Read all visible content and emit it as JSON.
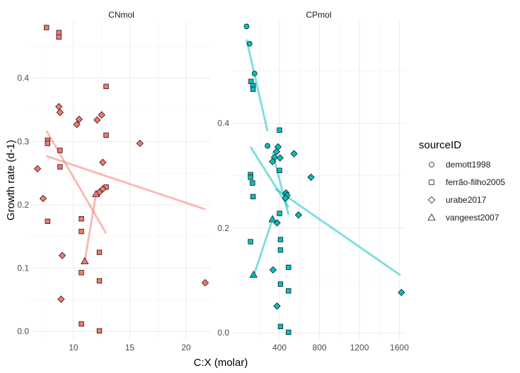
{
  "chart_data": {
    "type": "scatter",
    "xlabel": "C:X (molar)",
    "ylabel": "Growth rate (d-1)",
    "colors": {
      "CNmol": "#f8766d",
      "CPmol": "#00bfc4"
    },
    "legend": {
      "title": "sourceID",
      "position": "right",
      "entries": [
        {
          "name": "demott1998",
          "shape": "circle"
        },
        {
          "name": "ferrão-filho2005",
          "shape": "square"
        },
        {
          "name": "urabe2017",
          "shape": "diamond"
        },
        {
          "name": "vangeest2007",
          "shape": "triangle"
        }
      ]
    },
    "panels": [
      {
        "name": "CNmol",
        "xlim": [
          6.3,
          22.2
        ],
        "ylim": [
          -0.012,
          0.49
        ],
        "xticks": [
          10,
          15,
          20
        ],
        "yticks": [
          0.0,
          0.1,
          0.2,
          0.3,
          0.4
        ],
        "ytick_labels": [
          "0.0",
          "0.1",
          "0.2",
          "0.3",
          "0.4"
        ],
        "points": [
          {
            "x": 7.6,
            "y": 0.48,
            "source": "ferrão-filho2005"
          },
          {
            "x": 8.7,
            "y": 0.472,
            "source": "ferrão-filho2005"
          },
          {
            "x": 8.7,
            "y": 0.465,
            "source": "ferrão-filho2005"
          },
          {
            "x": 12.9,
            "y": 0.387,
            "source": "ferrão-filho2005"
          },
          {
            "x": 12.9,
            "y": 0.31,
            "source": "ferrão-filho2005"
          },
          {
            "x": 7.7,
            "y": 0.302,
            "source": "ferrão-filho2005"
          },
          {
            "x": 7.7,
            "y": 0.297,
            "source": "ferrão-filho2005"
          },
          {
            "x": 8.8,
            "y": 0.286,
            "source": "ferrão-filho2005"
          },
          {
            "x": 8.8,
            "y": 0.26,
            "source": "ferrão-filho2005"
          },
          {
            "x": 12.9,
            "y": 0.228,
            "source": "ferrão-filho2005"
          },
          {
            "x": 10.7,
            "y": 0.178,
            "source": "ferrão-filho2005"
          },
          {
            "x": 7.7,
            "y": 0.174,
            "source": "ferrão-filho2005"
          },
          {
            "x": 10.7,
            "y": 0.158,
            "source": "ferrão-filho2005"
          },
          {
            "x": 12.3,
            "y": 0.125,
            "source": "ferrão-filho2005"
          },
          {
            "x": 10.7,
            "y": 0.093,
            "source": "ferrão-filho2005"
          },
          {
            "x": 12.3,
            "y": 0.08,
            "source": "ferrão-filho2005"
          },
          {
            "x": 10.7,
            "y": 0.012,
            "source": "ferrão-filho2005"
          },
          {
            "x": 12.3,
            "y": 0.001,
            "source": "ferrão-filho2005"
          },
          {
            "x": 8.7,
            "y": 0.355,
            "source": "urabe2017"
          },
          {
            "x": 8.8,
            "y": 0.346,
            "source": "urabe2017"
          },
          {
            "x": 12.5,
            "y": 0.342,
            "source": "urabe2017"
          },
          {
            "x": 10.5,
            "y": 0.335,
            "source": "urabe2017"
          },
          {
            "x": 12.1,
            "y": 0.334,
            "source": "urabe2017"
          },
          {
            "x": 10.3,
            "y": 0.327,
            "source": "urabe2017"
          },
          {
            "x": 15.9,
            "y": 0.297,
            "source": "urabe2017"
          },
          {
            "x": 12.6,
            "y": 0.267,
            "source": "urabe2017"
          },
          {
            "x": 6.8,
            "y": 0.257,
            "source": "urabe2017"
          },
          {
            "x": 12.6,
            "y": 0.225,
            "source": "urabe2017"
          },
          {
            "x": 12.3,
            "y": 0.22,
            "source": "urabe2017"
          },
          {
            "x": 7.3,
            "y": 0.21,
            "source": "urabe2017"
          },
          {
            "x": 9.0,
            "y": 0.12,
            "source": "urabe2017"
          },
          {
            "x": 21.7,
            "y": 0.077,
            "source": "urabe2017"
          },
          {
            "x": 8.9,
            "y": 0.051,
            "source": "urabe2017"
          },
          {
            "x": 12.0,
            "y": 0.217,
            "source": "vangeest2007"
          },
          {
            "x": 11.0,
            "y": 0.111,
            "source": "vangeest2007"
          }
        ],
        "lines": [
          {
            "x": [
              7.6,
              12.9
            ],
            "y": [
              0.317,
              0.155
            ]
          },
          {
            "x": [
              7.6,
              21.7
            ],
            "y": [
              0.277,
              0.193
            ]
          },
          {
            "x": [
              11.0,
              12.0
            ],
            "y": [
              0.111,
              0.217
            ]
          }
        ]
      },
      {
        "name": "CPmol",
        "xlim": [
          -75,
          1660
        ],
        "ylim": [
          -0.012,
          0.595
        ],
        "xticks": [
          400,
          800,
          1200,
          1600
        ],
        "yticks": [
          0.0,
          0.2,
          0.4
        ],
        "ytick_labels": [
          "0.0",
          "0.2",
          "0.4"
        ],
        "points": [
          {
            "x": 70,
            "y": 0.585,
            "source": "demott1998"
          },
          {
            "x": 100,
            "y": 0.552,
            "source": "demott1998"
          },
          {
            "x": 150,
            "y": 0.495,
            "source": "demott1998"
          },
          {
            "x": 280,
            "y": 0.357,
            "source": "demott1998"
          },
          {
            "x": 115,
            "y": 0.48,
            "source": "ferrão-filho2005"
          },
          {
            "x": 135,
            "y": 0.472,
            "source": "ferrão-filho2005"
          },
          {
            "x": 135,
            "y": 0.465,
            "source": "ferrão-filho2005"
          },
          {
            "x": 400,
            "y": 0.387,
            "source": "ferrão-filho2005"
          },
          {
            "x": 400,
            "y": 0.31,
            "source": "ferrão-filho2005"
          },
          {
            "x": 110,
            "y": 0.302,
            "source": "ferrão-filho2005"
          },
          {
            "x": 110,
            "y": 0.297,
            "source": "ferrão-filho2005"
          },
          {
            "x": 130,
            "y": 0.286,
            "source": "ferrão-filho2005"
          },
          {
            "x": 135,
            "y": 0.26,
            "source": "ferrão-filho2005"
          },
          {
            "x": 400,
            "y": 0.228,
            "source": "ferrão-filho2005"
          },
          {
            "x": 410,
            "y": 0.178,
            "source": "ferrão-filho2005"
          },
          {
            "x": 110,
            "y": 0.174,
            "source": "ferrão-filho2005"
          },
          {
            "x": 410,
            "y": 0.158,
            "source": "ferrão-filho2005"
          },
          {
            "x": 490,
            "y": 0.125,
            "source": "ferrão-filho2005"
          },
          {
            "x": 410,
            "y": 0.093,
            "source": "ferrão-filho2005"
          },
          {
            "x": 490,
            "y": 0.08,
            "source": "ferrão-filho2005"
          },
          {
            "x": 410,
            "y": 0.012,
            "source": "ferrão-filho2005"
          },
          {
            "x": 490,
            "y": 0.001,
            "source": "ferrão-filho2005"
          },
          {
            "x": 385,
            "y": 0.355,
            "source": "urabe2017"
          },
          {
            "x": 370,
            "y": 0.346,
            "source": "urabe2017"
          },
          {
            "x": 545,
            "y": 0.342,
            "source": "urabe2017"
          },
          {
            "x": 350,
            "y": 0.335,
            "source": "urabe2017"
          },
          {
            "x": 405,
            "y": 0.334,
            "source": "urabe2017"
          },
          {
            "x": 330,
            "y": 0.327,
            "source": "urabe2017"
          },
          {
            "x": 715,
            "y": 0.297,
            "source": "urabe2017"
          },
          {
            "x": 465,
            "y": 0.267,
            "source": "urabe2017"
          },
          {
            "x": 475,
            "y": 0.262,
            "source": "urabe2017"
          },
          {
            "x": 460,
            "y": 0.257,
            "source": "urabe2017"
          },
          {
            "x": 590,
            "y": 0.225,
            "source": "urabe2017"
          },
          {
            "x": 375,
            "y": 0.21,
            "source": "urabe2017"
          },
          {
            "x": 335,
            "y": 0.12,
            "source": "urabe2017"
          },
          {
            "x": 1620,
            "y": 0.077,
            "source": "urabe2017"
          },
          {
            "x": 375,
            "y": 0.051,
            "source": "urabe2017"
          },
          {
            "x": 330,
            "y": 0.217,
            "source": "vangeest2007"
          },
          {
            "x": 140,
            "y": 0.111,
            "source": "vangeest2007"
          }
        ],
        "lines": [
          {
            "x": [
              70,
              280
            ],
            "y": [
              0.56,
              0.385
            ]
          },
          {
            "x": [
              110,
              490
            ],
            "y": [
              0.355,
              0.24
            ]
          },
          {
            "x": [
              330,
              490
            ],
            "y": [
              0.345,
              0.225
            ]
          },
          {
            "x": [
              140,
              330
            ],
            "y": [
              0.108,
              0.217
            ]
          },
          {
            "x": [
              360,
              1610
            ],
            "y": [
              0.275,
              0.11
            ]
          }
        ]
      }
    ]
  }
}
